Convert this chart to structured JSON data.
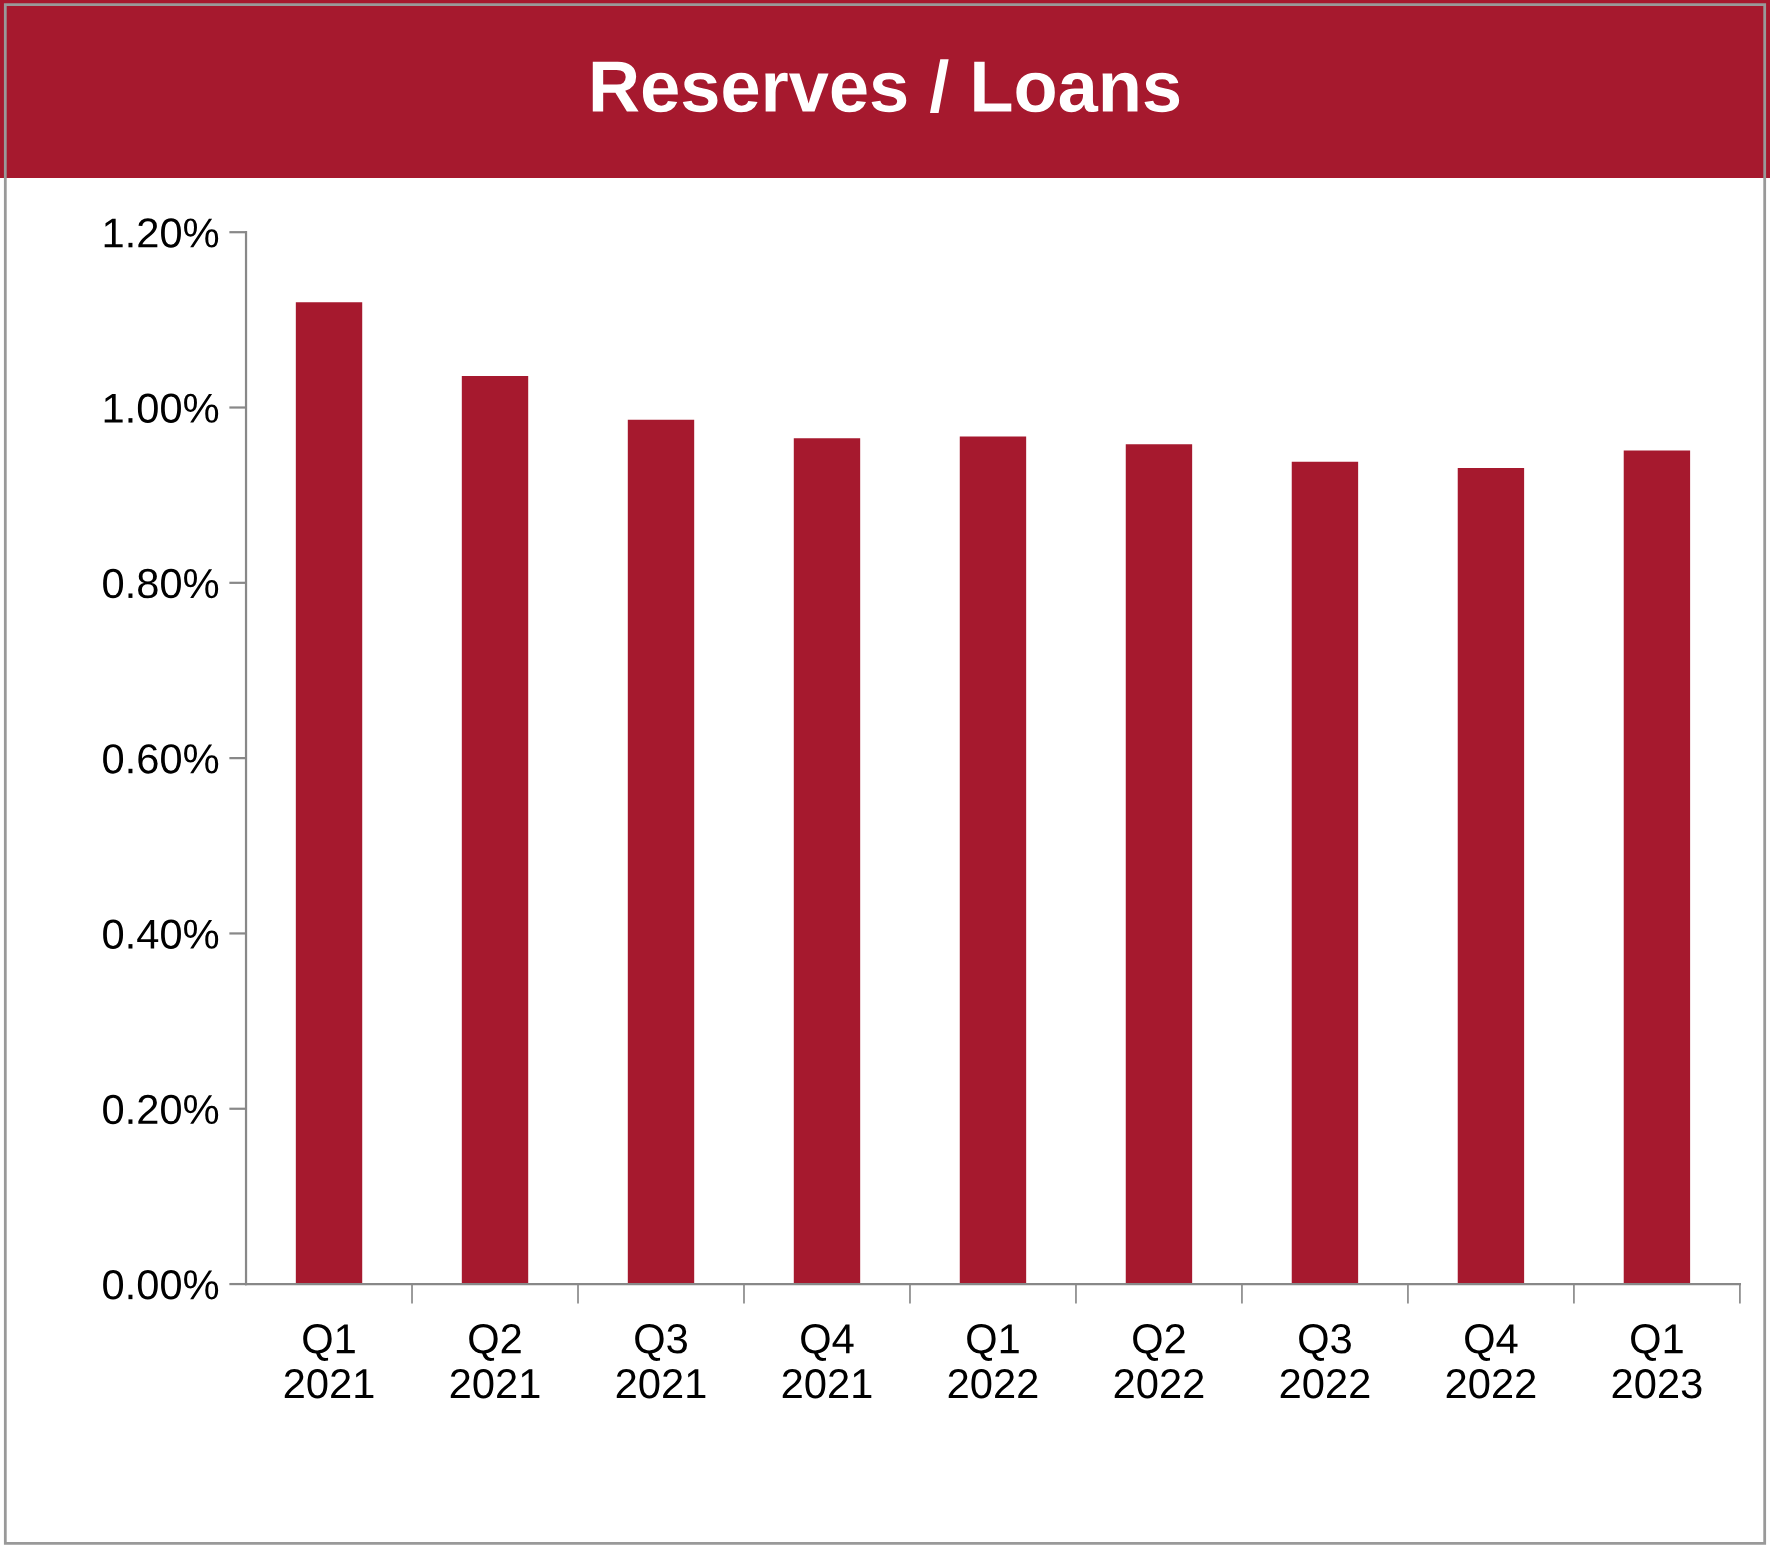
{
  "chart_data": {
    "type": "bar",
    "title": "Reserves / Loans",
    "categories": [
      "Q1\n2021",
      "Q2\n2021",
      "Q3\n2021",
      "Q4\n2021",
      "Q1\n2022",
      "Q2\n2022",
      "Q3\n2022",
      "Q4\n2022",
      "Q1\n2023"
    ],
    "values": [
      1.12,
      1.036,
      0.986,
      0.965,
      0.967,
      0.958,
      0.938,
      0.931,
      0.951
    ],
    "color": "#a6192e",
    "ylim": [
      0,
      1.2
    ],
    "yticks": [
      {
        "value": 0,
        "label": "0.00%"
      },
      {
        "value": 0.2,
        "label": "0.20%"
      },
      {
        "value": 0.4,
        "label": "0.40%"
      },
      {
        "value": 0.6,
        "label": "0.60%"
      },
      {
        "value": 0.8,
        "label": "0.80%"
      },
      {
        "value": 1.0,
        "label": "1.00%"
      },
      {
        "value": 1.2,
        "label": "1.20%"
      }
    ],
    "grid": false,
    "legend": false
  }
}
